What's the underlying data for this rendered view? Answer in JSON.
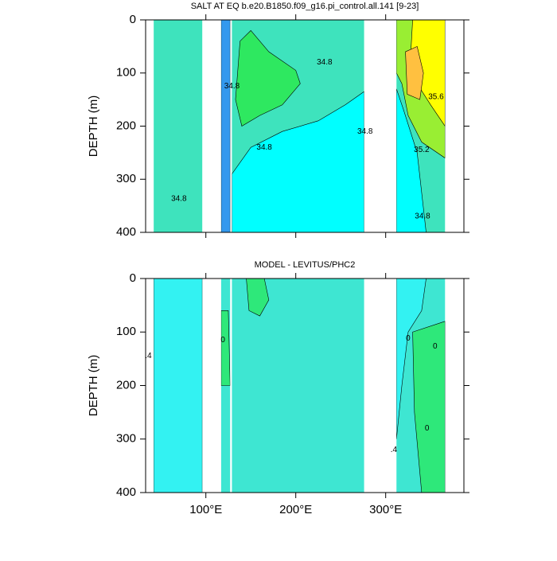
{
  "chart_data": [
    {
      "type": "contour",
      "title": "SALT AT EQ b.e20.B1850.f09_g16.pi_control.all.141 [9-23]",
      "ylabel": "DEPTH (m)",
      "xlim": [
        33,
        387
      ],
      "xticks": [
        100,
        200,
        300
      ],
      "ylim": [
        0,
        400
      ],
      "yticks": [
        0,
        100,
        200,
        300,
        400
      ],
      "y_reversed": true,
      "basin_color": "#3ee3bd",
      "basins": [
        [
          42,
          96
        ],
        [
          117,
          127
        ],
        [
          129,
          276
        ],
        [
          312,
          366
        ]
      ],
      "regions": [
        {
          "color": "#00ffff",
          "points": [
            [
              129,
              400
            ],
            [
              129,
              290
            ],
            [
              150,
              240
            ],
            [
              185,
              210
            ],
            [
              225,
              190
            ],
            [
              255,
              160
            ],
            [
              276,
              135
            ],
            [
              276,
              400
            ]
          ]
        },
        {
          "color": "#2ee860",
          "points": [
            [
              133,
              150
            ],
            [
              138,
              40
            ],
            [
              150,
              20
            ],
            [
              170,
              60
            ],
            [
              200,
              95
            ],
            [
              205,
              120
            ],
            [
              185,
              160
            ],
            [
              160,
              180
            ],
            [
              140,
              200
            ]
          ]
        },
        {
          "color": "#3399ee",
          "points": [
            [
              117,
              0
            ],
            [
              127,
              0
            ],
            [
              127,
              400
            ],
            [
              117,
              400
            ]
          ]
        },
        {
          "color": "#99ee33",
          "points": [
            [
              312,
              0
            ],
            [
              366,
              0
            ],
            [
              366,
              260
            ],
            [
              340,
              230
            ],
            [
              325,
              180
            ],
            [
              318,
              120
            ],
            [
              312,
              100
            ]
          ]
        },
        {
          "color": "#ffff00",
          "points": [
            [
              330,
              0
            ],
            [
              366,
              0
            ],
            [
              366,
              200
            ],
            [
              350,
              160
            ],
            [
              335,
              120
            ],
            [
              328,
              60
            ]
          ]
        },
        {
          "color": "#ffc040",
          "points": [
            [
              322,
              60
            ],
            [
              335,
              50
            ],
            [
              342,
              100
            ],
            [
              338,
              150
            ],
            [
              324,
              140
            ]
          ]
        },
        {
          "color": "#00ffff",
          "points": [
            [
              312,
              130
            ],
            [
              320,
              170
            ],
            [
              335,
              250
            ],
            [
              345,
              400
            ],
            [
              312,
              400
            ]
          ]
        }
      ],
      "contour_labels": [
        {
          "label": "34.8",
          "x": 70,
          "y": 337
        },
        {
          "label": "34.8",
          "x": 129,
          "y": 125
        },
        {
          "label": "34.8",
          "x": 165,
          "y": 240
        },
        {
          "label": "34.8",
          "x": 232,
          "y": 80
        },
        {
          "label": "34.8",
          "x": 277,
          "y": 210
        },
        {
          "label": "35.6",
          "x": 356,
          "y": 145
        },
        {
          "label": "35.2",
          "x": 340,
          "y": 245
        },
        {
          "label": "34.8",
          "x": 341,
          "y": 370
        }
      ]
    },
    {
      "type": "contour",
      "title": "MODEL - LEVITUS/PHC2",
      "ylabel": "DEPTH (m)",
      "xlim": [
        33,
        387
      ],
      "xticks": [
        {
          "value": 100,
          "label": "100°E"
        },
        {
          "value": 200,
          "label": "200°E"
        },
        {
          "value": 300,
          "label": "300°E"
        }
      ],
      "ylim": [
        0,
        400
      ],
      "yticks": [
        0,
        100,
        200,
        300,
        400
      ],
      "y_reversed": true,
      "basin_color": "#3ee6d2",
      "basins": [
        [
          42,
          96
        ],
        [
          117,
          127
        ],
        [
          129,
          276
        ],
        [
          312,
          366
        ]
      ],
      "regions": [
        {
          "color": "#33f2f2",
          "points": [
            [
              42,
              0
            ],
            [
              96,
              0
            ],
            [
              96,
              400
            ],
            [
              42,
              400
            ]
          ]
        },
        {
          "color": "#2ee87a",
          "points": [
            [
              145,
              0
            ],
            [
              165,
              0
            ],
            [
              170,
              40
            ],
            [
              160,
              70
            ],
            [
              148,
              60
            ]
          ]
        },
        {
          "color": "#2ee87a",
          "points": [
            [
              117,
              60
            ],
            [
              125,
              60
            ],
            [
              127,
              200
            ],
            [
              117,
              200
            ]
          ]
        },
        {
          "color": "#33f2f2",
          "points": [
            [
              312,
              0
            ],
            [
              345,
              0
            ],
            [
              340,
              60
            ],
            [
              325,
              100
            ],
            [
              318,
              200
            ],
            [
              312,
              300
            ]
          ]
        },
        {
          "color": "#2ee87a",
          "points": [
            [
              330,
              100
            ],
            [
              366,
              80
            ],
            [
              366,
              400
            ],
            [
              340,
              400
            ],
            [
              332,
              250
            ]
          ]
        }
      ],
      "contour_labels": [
        {
          "label": ".4",
          "x": 36,
          "y": 145
        },
        {
          "label": "0",
          "x": 119,
          "y": 115
        },
        {
          "label": "0",
          "x": 325,
          "y": 112
        },
        {
          "label": "0",
          "x": 355,
          "y": 127
        },
        {
          "label": "0",
          "x": 346,
          "y": 280
        },
        {
          "label": ".4",
          "x": 309,
          "y": 320
        }
      ]
    }
  ]
}
